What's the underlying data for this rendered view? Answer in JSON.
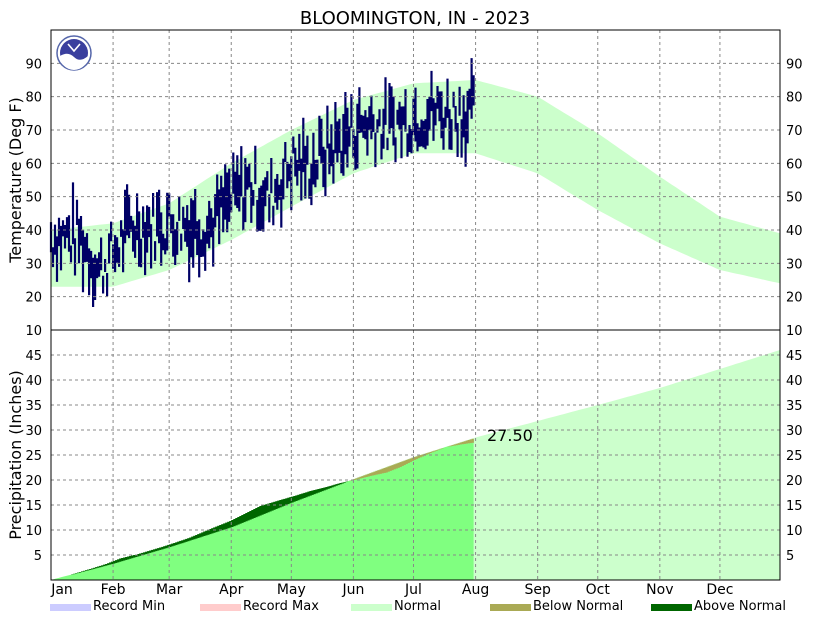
{
  "chart_data": {
    "type": "area",
    "title": "BLOOMINGTON, IN - 2023",
    "months": [
      "Jan",
      "Feb",
      "Mar",
      "Apr",
      "May",
      "Jun",
      "Jul",
      "Aug",
      "Sep",
      "Oct",
      "Nov",
      "Dec"
    ],
    "colors": {
      "record_min": "#ccccff",
      "record_max": "#ffcccc",
      "normal": "#ccffcc",
      "below_normal": "#aaaa55",
      "above_normal": "#006600",
      "observed_precip_fill": "#80ff80",
      "temperature_bars": "#000066"
    },
    "legend": {
      "placement": "bottom",
      "items": [
        {
          "label": "Record Min",
          "color": "#ccccff"
        },
        {
          "label": "Record Max",
          "color": "#ffcccc"
        },
        {
          "label": "Normal",
          "color": "#ccffcc"
        },
        {
          "label": "Below Normal",
          "color": "#aaaa55"
        },
        {
          "label": "Above Normal",
          "color": "#006600"
        }
      ]
    },
    "temperature": {
      "ylabel": "Temperature (Deg F)",
      "ylim": [
        10,
        100
      ],
      "ticks": [
        10,
        20,
        30,
        40,
        50,
        60,
        70,
        80,
        90
      ],
      "grid": true,
      "normal_band": {
        "day": [
          1,
          32,
          60,
          91,
          121,
          152,
          182,
          213,
          244,
          274,
          305,
          335,
          365
        ],
        "low": [
          23,
          23,
          28,
          37,
          47,
          57,
          63,
          63,
          57,
          46,
          36,
          28,
          24
        ],
        "high": [
          40,
          42,
          48,
          60,
          70,
          79,
          84,
          85,
          80,
          69,
          56,
          44,
          39
        ]
      },
      "observed_daily": {
        "last_day": 212,
        "high_points": {
          "day": [
            1,
            15,
            25,
            32,
            41,
            50,
            60,
            70,
            80,
            91,
            100,
            110,
            121,
            130,
            140,
            152,
            160,
            170,
            182,
            190,
            200,
            212
          ],
          "value": [
            46,
            50,
            36,
            40,
            52,
            50,
            54,
            55,
            50,
            60,
            65,
            58,
            72,
            68,
            75,
            82,
            83,
            80,
            84,
            85,
            84,
            88
          ]
        },
        "low_points": {
          "day": [
            1,
            15,
            25,
            32,
            41,
            50,
            60,
            70,
            80,
            91,
            100,
            110,
            121,
            130,
            140,
            152,
            160,
            170,
            182,
            190,
            200,
            212
          ],
          "value": [
            30,
            26,
            20,
            26,
            30,
            32,
            30,
            28,
            32,
            38,
            42,
            40,
            48,
            50,
            53,
            58,
            62,
            62,
            64,
            66,
            66,
            62
          ]
        }
      }
    },
    "precipitation": {
      "ylabel": "Precipitation (Inches)",
      "ylim": [
        0,
        50
      ],
      "ticks": [
        5,
        10,
        15,
        20,
        25,
        30,
        35,
        40,
        45
      ],
      "grid": true,
      "annotation": "27.50",
      "normal_accumulated": {
        "day": [
          1,
          32,
          60,
          91,
          121,
          152,
          182,
          213,
          244,
          274,
          305,
          335,
          365
        ],
        "value": [
          0,
          3.3,
          6.6,
          10.6,
          15.5,
          20.2,
          24.6,
          28.5,
          31.8,
          35.0,
          38.4,
          42.2,
          46.0
        ]
      },
      "observed_accumulated": {
        "day": [
          1,
          10,
          20,
          28,
          35,
          45,
          55,
          62,
          70,
          80,
          90,
          98,
          105,
          115,
          122,
          130,
          138,
          145,
          152,
          160,
          168,
          175,
          182,
          190,
          198,
          205,
          212
        ],
        "value": [
          0,
          1.0,
          2.2,
          3.2,
          4.3,
          5.3,
          6.5,
          7.4,
          8.5,
          10.2,
          11.8,
          13.4,
          14.8,
          16.0,
          16.8,
          17.8,
          18.6,
          19.4,
          20.0,
          20.8,
          21.5,
          22.6,
          24.0,
          25.4,
          26.6,
          27.1,
          27.5
        ]
      }
    }
  }
}
